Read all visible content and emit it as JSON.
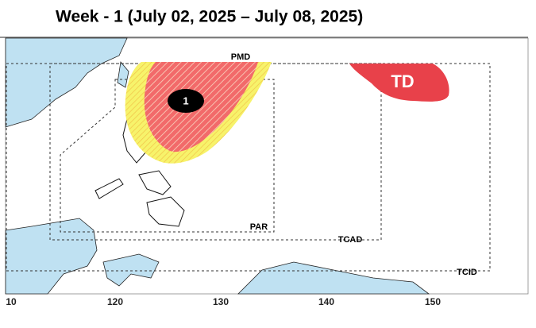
{
  "title": "Week - 1 (July 02, 2025 – July 08, 2025)",
  "map": {
    "areas": [
      {
        "label": "1"
      },
      {
        "label": "TD"
      }
    ],
    "boundaries": [
      "PMD",
      "PAR",
      "TCAD",
      "TCID"
    ]
  },
  "axis": {
    "tick_labels": [
      "10",
      "120",
      "130",
      "140",
      "150"
    ]
  }
}
